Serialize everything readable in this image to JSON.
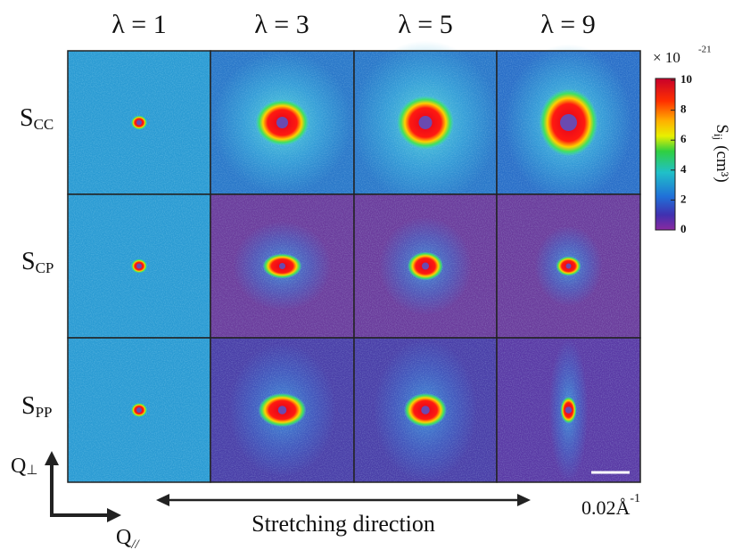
{
  "columns": [
    "λ = 1",
    "λ = 3",
    "λ = 5",
    "λ = 9"
  ],
  "rows": [
    {
      "symbol": "S",
      "subscript": "CC"
    },
    {
      "symbol": "S",
      "subscript": "CP"
    },
    {
      "symbol": "S",
      "subscript": "PP"
    }
  ],
  "colorbar": {
    "multiplier": "× 10",
    "exponent": "-21",
    "label": "S",
    "label_subscript": "ij",
    "unit": "(cm³)",
    "ticks": [
      "10",
      "8",
      "6",
      "4",
      "2",
      "0"
    ]
  },
  "scale_bar": {
    "label": "0.02Å",
    "exponent": "-1"
  },
  "stretching_label": "Stretching direction",
  "axes": {
    "vertical": {
      "symbol": "Q",
      "subscript": "⊥"
    },
    "horizontal": {
      "symbol": "Q",
      "subscript": "//"
    }
  }
}
